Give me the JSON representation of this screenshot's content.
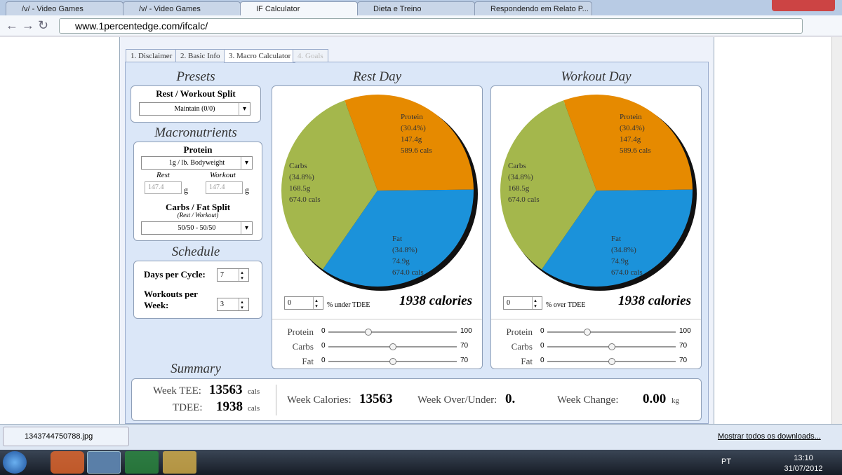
{
  "browser": {
    "tabs": [
      "/v/ - Video Games",
      "/v/ - Video Games",
      "IF Calculator",
      "Dieta e Treino",
      "Respondendo em Relato P..."
    ],
    "url": "www.1percentedge.com/ifcalc/"
  },
  "steps": [
    "1. Disclaimer",
    "2. Basic Info",
    "3. Macro Calculator",
    "4. Goals"
  ],
  "presets": {
    "heading": "Presets",
    "split_label": "Rest / Workout Split",
    "split_value": "Maintain (0/0)"
  },
  "macros": {
    "heading": "Macronutrients",
    "protein_label": "Protein",
    "protein_value": "1g / lb. Bodyweight",
    "rest_label": "Rest",
    "workout_label": "Workout",
    "rest_value": "147.4",
    "workout_value": "147.4",
    "unit": "g",
    "split_label": "Carbs / Fat Split",
    "split_sub": "(Rest / Workout)",
    "split_value": "50/50 - 50/50"
  },
  "schedule": {
    "heading": "Schedule",
    "days_label": "Days per Cycle:",
    "days_value": "7",
    "workouts_label": "Workouts per Week:",
    "workouts_value": "3"
  },
  "days": [
    {
      "title": "Rest Day",
      "chart": {
        "type": "pie",
        "categories": [
          "Protein",
          "Fat",
          "Carbs"
        ],
        "values": [
          30.4,
          34.8,
          34.8
        ],
        "value_labels": [
          "(30.4%)",
          "(34.8%)",
          "(34.8%)"
        ],
        "grams": [
          "147.4g",
          "74.9g",
          "168.5g"
        ],
        "cals": [
          "589.6 cals",
          "674.0 cals",
          "674.0 cals"
        ],
        "colors": [
          "#e68a00",
          "#1b92da",
          "#a4b74c"
        ]
      },
      "adjust_value": "0",
      "adjust_label": "% under TDEE",
      "calories": "1938 calories",
      "sliders": [
        {
          "name": "Protein",
          "min": 0,
          "max": 100,
          "value": 31
        },
        {
          "name": "Carbs",
          "min": 0,
          "max": 70,
          "value": 35
        },
        {
          "name": "Fat",
          "min": 0,
          "max": 70,
          "value": 35
        }
      ]
    },
    {
      "title": "Workout Day",
      "chart": {
        "type": "pie",
        "categories": [
          "Protein",
          "Fat",
          "Carbs"
        ],
        "values": [
          30.4,
          34.8,
          34.8
        ],
        "value_labels": [
          "(30.4%)",
          "(34.8%)",
          "(34.8%)"
        ],
        "grams": [
          "147.4g",
          "74.9g",
          "168.5g"
        ],
        "cals": [
          "589.6 cals",
          "674.0 cals",
          "674.0 cals"
        ],
        "colors": [
          "#e68a00",
          "#1b92da",
          "#a4b74c"
        ]
      },
      "adjust_value": "0",
      "adjust_label": "% over TDEE",
      "calories": "1938 calories",
      "sliders": [
        {
          "name": "Protein",
          "min": 0,
          "max": 100,
          "value": 31
        },
        {
          "name": "Carbs",
          "min": 0,
          "max": 70,
          "value": 35
        },
        {
          "name": "Fat",
          "min": 0,
          "max": 70,
          "value": 35
        }
      ]
    }
  ],
  "summary": {
    "heading": "Summary",
    "week_tee_label": "Week TEE:",
    "week_tee": "13563",
    "tdee_label": "TDEE:",
    "tdee": "1938",
    "cals_unit": "cals",
    "week_calories_label": "Week Calories:",
    "week_calories": "13563",
    "over_under_label": "Week Over/Under:",
    "over_under": "0.",
    "change_label": "Week Change:",
    "change": "0.00",
    "change_unit": "kg"
  },
  "downloads": {
    "file": "1343744750788.jpg",
    "show_all": "Mostrar todos os downloads..."
  },
  "taskbar": {
    "language": "PT",
    "time": "13:10",
    "date": "31/07/2012"
  }
}
